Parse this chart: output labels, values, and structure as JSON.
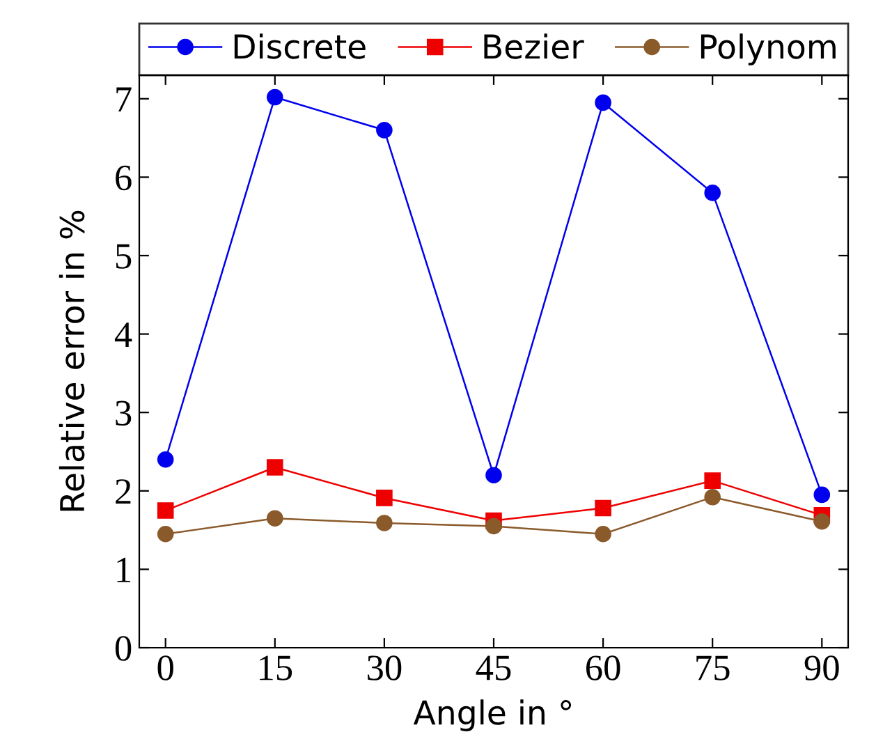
{
  "chart_data": {
    "type": "line",
    "xlabel": "Angle in °",
    "ylabel": "Relative error in %",
    "x": [
      0,
      15,
      30,
      45,
      60,
      75,
      90
    ],
    "series": [
      {
        "name": "Discrete",
        "color": "#0000ee",
        "marker": "circle",
        "values": [
          2.4,
          7.02,
          6.6,
          2.2,
          6.95,
          5.8,
          1.95
        ]
      },
      {
        "name": "Bezier",
        "color": "#ee0000",
        "marker": "square",
        "values": [
          1.75,
          2.3,
          1.91,
          1.62,
          1.78,
          2.13,
          1.69
        ]
      },
      {
        "name": "Polynom",
        "color": "#8b5a2b",
        "marker": "circle",
        "values": [
          1.45,
          1.65,
          1.59,
          1.55,
          1.45,
          1.92,
          1.61
        ]
      }
    ],
    "xlim": [
      -3.6,
      93.6
    ],
    "ylim": [
      0,
      7.3
    ],
    "xticks": [
      0,
      15,
      30,
      45,
      60,
      75,
      90
    ],
    "yticks": [
      0,
      1,
      2,
      3,
      4,
      5,
      6,
      7
    ],
    "grid": false,
    "legend": "top",
    "line_style": "solid"
  }
}
